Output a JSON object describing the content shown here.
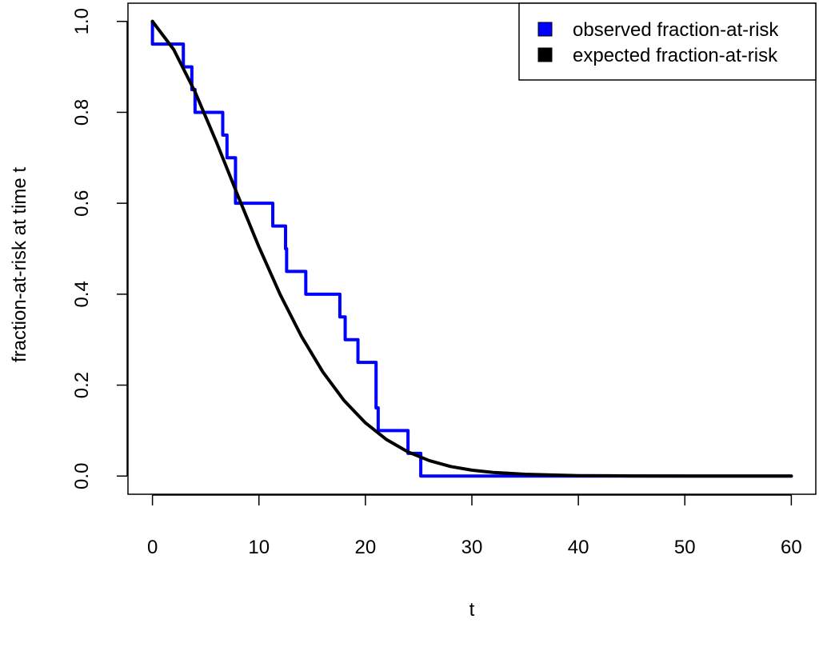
{
  "chart_data": {
    "type": "line",
    "xlabel": "t",
    "ylabel": "fraction-at-risk at time t",
    "xlim": [
      -2.3,
      62.3
    ],
    "ylim": [
      -0.04,
      1.04
    ],
    "x_ticks": [
      0,
      10,
      20,
      30,
      40,
      50,
      60
    ],
    "x_tick_labels": [
      "0",
      "10",
      "20",
      "30",
      "40",
      "50",
      "60"
    ],
    "y_ticks": [
      0.0,
      0.2,
      0.4,
      0.6,
      0.8,
      1.0
    ],
    "y_tick_labels": [
      "0.0",
      "0.2",
      "0.4",
      "0.6",
      "0.8",
      "1.0"
    ],
    "grid": false,
    "legend_position": "top-right",
    "series": [
      {
        "name": "observed fraction-at-risk",
        "style": "step",
        "color": "#0000ff",
        "x": [
          0,
          2.9,
          3.5,
          3.7,
          4.0,
          6.6,
          7.0,
          7.3,
          7.8,
          11.3,
          12.5,
          12.6,
          14.4,
          17.6,
          18.1,
          18.5,
          19.3,
          21.0,
          21.2,
          24.0,
          25.2,
          60
        ],
        "y": [
          0.95,
          0.9,
          0.9,
          0.85,
          0.8,
          0.75,
          0.7,
          0.7,
          0.6,
          0.55,
          0.5,
          0.45,
          0.4,
          0.35,
          0.3,
          0.3,
          0.25,
          0.15,
          0.1,
          0.05,
          0.0,
          0.0
        ],
        "start": [
          0,
          1.0
        ]
      },
      {
        "name": "expected fraction-at-risk",
        "style": "line",
        "color": "#000000",
        "x": [
          0,
          2,
          4,
          6,
          8,
          10,
          12,
          14,
          16,
          18,
          20,
          22,
          24,
          26,
          28,
          30,
          32,
          35,
          40,
          45,
          50,
          55,
          60
        ],
        "y": [
          1.0,
          0.938,
          0.845,
          0.735,
          0.618,
          0.504,
          0.399,
          0.307,
          0.229,
          0.166,
          0.117,
          0.08,
          0.053,
          0.034,
          0.021,
          0.013,
          0.008,
          0.004,
          0.001,
          0.0003,
          0.0001,
          2e-05,
          0.0
        ]
      }
    ]
  }
}
